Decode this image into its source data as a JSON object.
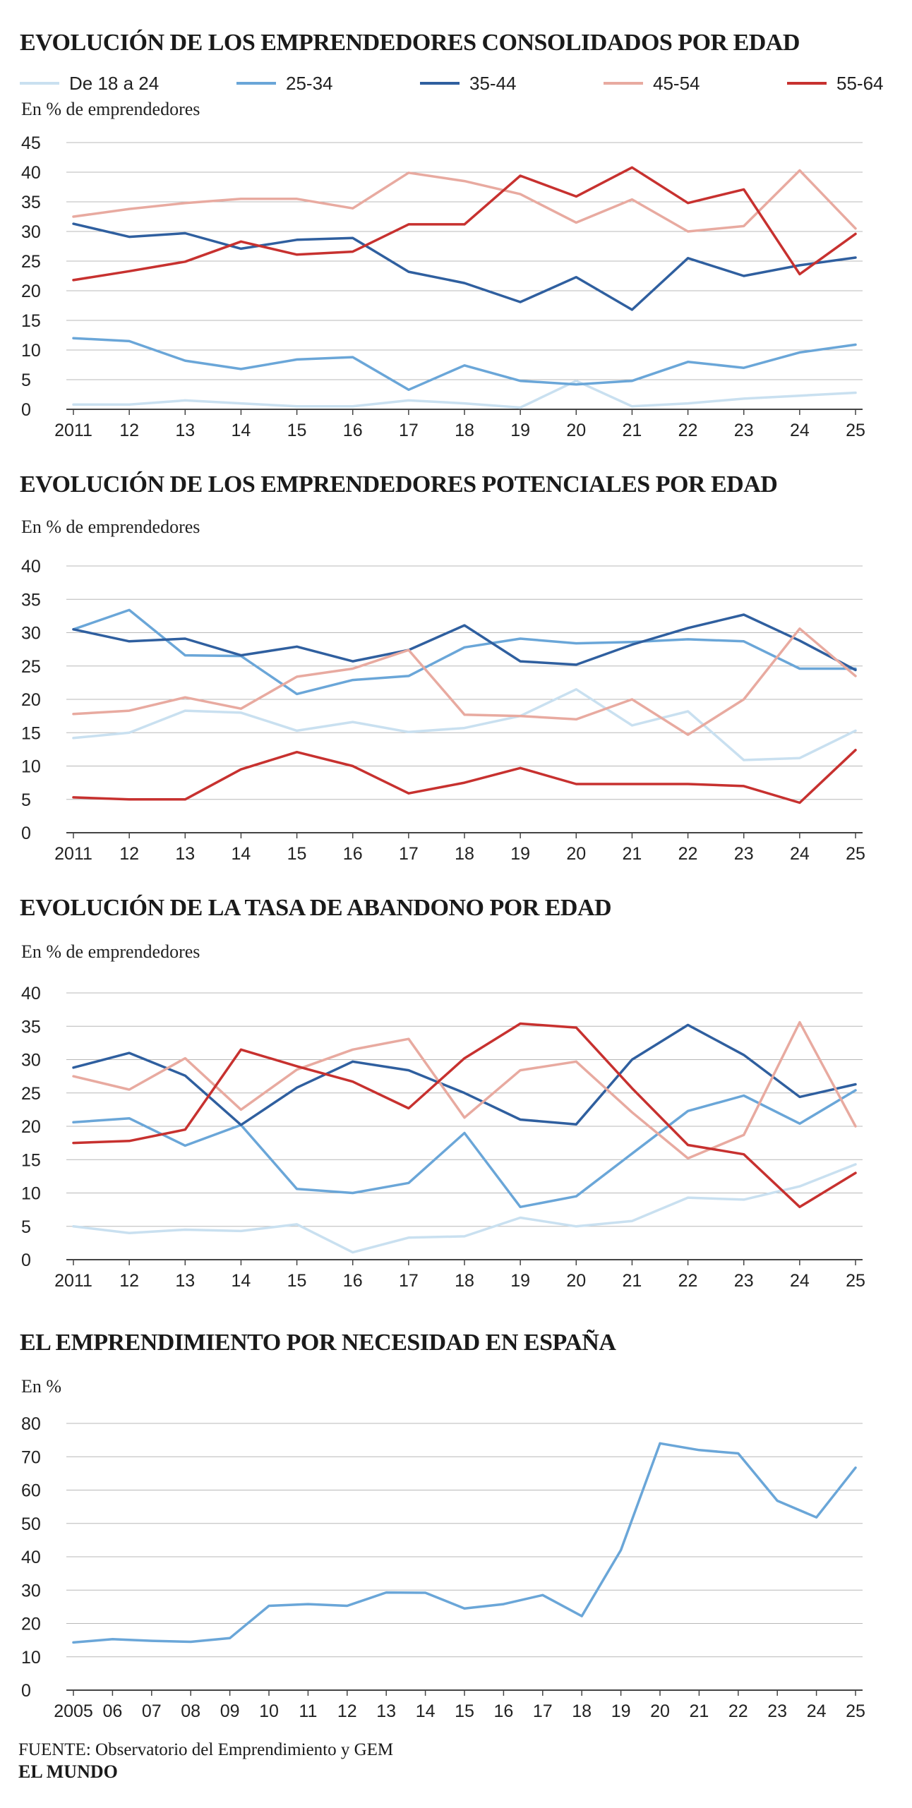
{
  "legend": [
    {
      "name": "De 18 a 24",
      "color": "#c9e0f0"
    },
    {
      "name": "25-34",
      "color": "#6aa6d8"
    },
    {
      "name": "35-44",
      "color": "#2f5f9f"
    },
    {
      "name": "45-54",
      "color": "#e8aaa0"
    },
    {
      "name": "55-64",
      "color": "#c7312f"
    }
  ],
  "chart_data": [
    {
      "type": "line",
      "title": "EVOLUCIÓN DE LOS EMPRENDEDORES CONSOLIDADOS POR EDAD",
      "unit_label": "En % de emprendedores",
      "x": [
        "2011",
        "12",
        "13",
        "14",
        "15",
        "16",
        "17",
        "18",
        "19",
        "20",
        "21",
        "22",
        "23",
        "24",
        "25"
      ],
      "ylim": [
        0,
        45
      ],
      "yticks": [
        0,
        5,
        10,
        15,
        20,
        25,
        30,
        35,
        40,
        45
      ],
      "grid": true,
      "legend_position": "top",
      "series": [
        {
          "name": "De 18 a 24",
          "color": "#c9e0f0",
          "values": [
            0.8,
            0.8,
            1.5,
            1.0,
            0.5,
            0.5,
            1.5,
            1.0,
            0.3,
            4.8,
            0.5,
            1.0,
            1.8,
            2.3,
            2.8
          ]
        },
        {
          "name": "25-34",
          "color": "#6aa6d8",
          "values": [
            12.0,
            11.5,
            8.2,
            6.8,
            8.4,
            8.8,
            3.3,
            7.4,
            4.8,
            4.2,
            4.8,
            8.0,
            7.0,
            9.6,
            10.9
          ]
        },
        {
          "name": "35-44",
          "color": "#2f5f9f",
          "values": [
            31.3,
            29.1,
            29.7,
            27.1,
            28.6,
            28.9,
            23.2,
            21.3,
            18.1,
            22.3,
            16.8,
            25.5,
            22.5,
            24.3,
            25.6
          ]
        },
        {
          "name": "45-54",
          "color": "#e8aaa0",
          "values": [
            32.5,
            33.8,
            34.8,
            35.5,
            35.5,
            33.9,
            39.9,
            38.5,
            36.3,
            31.5,
            35.4,
            30.0,
            30.9,
            40.3,
            30.5
          ]
        },
        {
          "name": "55-64",
          "color": "#c7312f",
          "values": [
            21.8,
            23.3,
            24.9,
            28.3,
            26.1,
            26.6,
            31.2,
            31.2,
            39.4,
            35.9,
            40.8,
            34.8,
            37.1,
            22.8,
            29.6
          ]
        }
      ]
    },
    {
      "type": "line",
      "title": "EVOLUCIÓN DE LOS EMPRENDEDORES POTENCIALES POR EDAD",
      "unit_label": "En % de emprendedores",
      "x": [
        "2011",
        "12",
        "13",
        "14",
        "15",
        "16",
        "17",
        "18",
        "19",
        "20",
        "21",
        "22",
        "23",
        "24",
        "25"
      ],
      "ylim": [
        0,
        40
      ],
      "yticks": [
        0,
        5,
        10,
        15,
        20,
        25,
        30,
        35,
        40
      ],
      "grid": true,
      "series": [
        {
          "name": "De 18 a 24",
          "color": "#c9e0f0",
          "values": [
            14.2,
            15.0,
            18.3,
            18.0,
            15.3,
            16.6,
            15.1,
            15.7,
            17.5,
            21.5,
            16.1,
            18.2,
            10.9,
            11.2,
            15.3
          ]
        },
        {
          "name": "25-34",
          "color": "#6aa6d8",
          "values": [
            30.5,
            33.4,
            26.6,
            26.5,
            20.8,
            22.9,
            23.5,
            27.8,
            29.1,
            28.4,
            28.6,
            29.0,
            28.7,
            24.6,
            24.6
          ]
        },
        {
          "name": "35-44",
          "color": "#2f5f9f",
          "values": [
            30.5,
            28.7,
            29.1,
            26.6,
            27.9,
            25.7,
            27.4,
            31.1,
            25.7,
            25.2,
            28.2,
            30.7,
            32.7,
            28.8,
            24.4
          ]
        },
        {
          "name": "45-54",
          "color": "#e8aaa0",
          "values": [
            17.8,
            18.3,
            20.3,
            18.6,
            23.4,
            24.6,
            27.4,
            17.7,
            17.5,
            17.0,
            20.0,
            14.7,
            20.0,
            30.6,
            23.5
          ]
        },
        {
          "name": "55-64",
          "color": "#c7312f",
          "values": [
            5.3,
            5.0,
            5.0,
            9.5,
            12.1,
            10.0,
            5.9,
            7.5,
            9.7,
            7.3,
            7.3,
            7.3,
            7.0,
            4.5,
            12.4
          ]
        }
      ]
    },
    {
      "type": "line",
      "title": "EVOLUCIÓN DE LA TASA DE ABANDONO POR EDAD",
      "unit_label": "En % de emprendedores",
      "x": [
        "2011",
        "12",
        "13",
        "14",
        "15",
        "16",
        "17",
        "18",
        "19",
        "20",
        "21",
        "22",
        "23",
        "24",
        "25"
      ],
      "ylim": [
        0,
        40
      ],
      "yticks": [
        0,
        5,
        10,
        15,
        20,
        25,
        30,
        35,
        40
      ],
      "grid": true,
      "series": [
        {
          "name": "De 18 a 24",
          "color": "#c9e0f0",
          "values": [
            5.0,
            4.0,
            4.5,
            4.3,
            5.3,
            1.1,
            3.3,
            3.5,
            6.3,
            5.0,
            5.8,
            9.3,
            9.0,
            11.0,
            14.3
          ]
        },
        {
          "name": "25-34",
          "color": "#6aa6d8",
          "values": [
            20.6,
            21.2,
            17.1,
            20.2,
            10.6,
            10.0,
            11.5,
            19.0,
            7.9,
            9.5,
            15.9,
            22.3,
            24.6,
            20.4,
            25.4
          ]
        },
        {
          "name": "35-44",
          "color": "#2f5f9f",
          "values": [
            28.8,
            31.0,
            27.6,
            20.2,
            25.8,
            29.7,
            28.4,
            25.0,
            21.0,
            20.3,
            30.0,
            35.2,
            30.7,
            24.4,
            26.3
          ]
        },
        {
          "name": "45-54",
          "color": "#e8aaa0",
          "values": [
            27.5,
            25.5,
            30.2,
            22.5,
            28.5,
            31.5,
            33.1,
            21.3,
            28.4,
            29.7,
            22.1,
            15.2,
            18.7,
            35.6,
            20.0
          ]
        },
        {
          "name": "55-64",
          "color": "#c7312f",
          "values": [
            17.5,
            17.8,
            19.5,
            31.5,
            29.0,
            26.7,
            22.7,
            30.2,
            35.4,
            34.8,
            25.7,
            17.2,
            15.8,
            7.9,
            13.0
          ]
        }
      ]
    },
    {
      "type": "line",
      "title": "EL EMPRENDIMIENTO POR NECESIDAD EN ESPAÑA",
      "unit_label": "En %",
      "x": [
        "2005",
        "06",
        "07",
        "08",
        "09",
        "10",
        "11",
        "12",
        "13",
        "14",
        "15",
        "16",
        "17",
        "18",
        "19",
        "20",
        "21",
        "22",
        "23",
        "24",
        "25"
      ],
      "ylim": [
        0,
        80
      ],
      "yticks": [
        0,
        10,
        20,
        30,
        40,
        50,
        60,
        70,
        80
      ],
      "grid": true,
      "series": [
        {
          "color": "#6aa6d8",
          "values": [
            14.3,
            15.3,
            14.8,
            14.5,
            15.6,
            25.3,
            25.8,
            25.3,
            29.3,
            29.2,
            24.5,
            25.8,
            28.5,
            22.2,
            42.0,
            74.0,
            72.0,
            71.0,
            56.8,
            51.8,
            66.7
          ]
        }
      ]
    }
  ],
  "footer": {
    "source_label": "FUENTE:",
    "source_text": "Observatorio del Emprendimiento y GEM",
    "brand": "EL MUNDO"
  }
}
